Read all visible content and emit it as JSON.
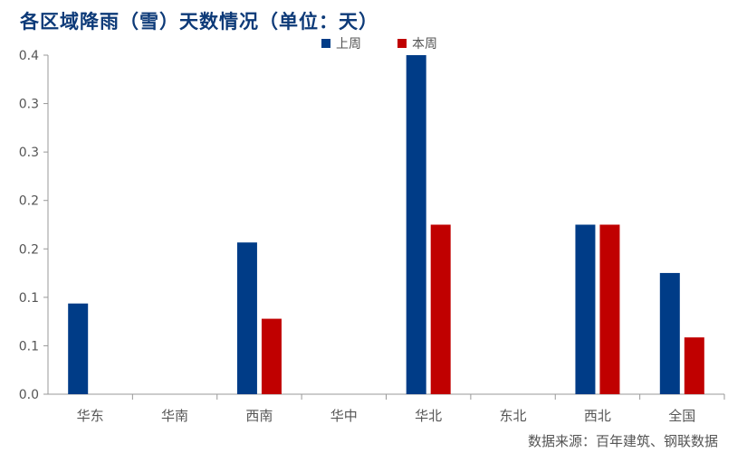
{
  "chart_data": {
    "type": "bar",
    "title": "各区域降雨（雪）天数情况（单位：天）",
    "categories": [
      "华东",
      "华南",
      "西南",
      "华中",
      "华北",
      "东北",
      "西北",
      "全国"
    ],
    "series": [
      {
        "name": "上周",
        "color": "#003c87",
        "values": [
          0.107,
          0,
          0.179,
          0,
          0.4,
          0,
          0.2,
          0.143
        ]
      },
      {
        "name": "本周",
        "color": "#c00000",
        "values": [
          0,
          0,
          0.089,
          0,
          0.2,
          0,
          0.2,
          0.067
        ]
      }
    ],
    "y_tick_labels": [
      "0.0",
      "0.1",
      "0.1",
      "0.2",
      "0.2",
      "0.3",
      "0.3",
      "0.4"
    ],
    "ylim": [
      0,
      0.4
    ],
    "grid": false,
    "legend_position": "top-center",
    "source": "数据来源：百年建筑、钢联数据"
  }
}
